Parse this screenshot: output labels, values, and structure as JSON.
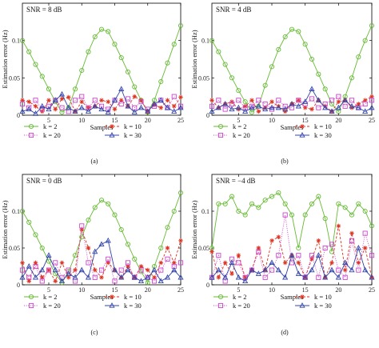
{
  "chart_data": [
    {
      "type": "line",
      "panel_label": "(a)",
      "annotation": "SNR = 8 dB",
      "xlabel": "Samples",
      "ylabel": "Estimation error (Hz)",
      "xlim": [
        1,
        25
      ],
      "ylim": [
        0,
        0.15
      ],
      "xticks": [
        "5",
        "10",
        "15",
        "20",
        "25"
      ],
      "yticks": [
        "0",
        "0.05",
        "0.1"
      ],
      "grid": false,
      "legend_position": "below",
      "x": [
        1,
        2,
        3,
        4,
        5,
        6,
        7,
        8,
        9,
        10,
        11,
        12,
        13,
        14,
        15,
        16,
        17,
        18,
        19,
        20,
        21,
        22,
        23,
        24,
        25
      ],
      "series": [
        {
          "name": "k = 2",
          "color": "#66bb33",
          "marker": "circle",
          "linestyle": "solid",
          "values": [
            0.1,
            0.085,
            0.068,
            0.052,
            0.035,
            0.018,
            0.004,
            0.01,
            0.035,
            0.06,
            0.085,
            0.105,
            0.115,
            0.112,
            0.095,
            0.077,
            0.058,
            0.038,
            0.02,
            0.004,
            0.02,
            0.045,
            0.07,
            0.095,
            0.12
          ]
        },
        {
          "name": "k = 10",
          "color": "#dd3322",
          "marker": "star",
          "linestyle": "dashed",
          "values": [
            0.02,
            0.018,
            0.012,
            0.005,
            0.02,
            0.008,
            0.022,
            0.024,
            0.005,
            0.018,
            0.01,
            0.012,
            0.02,
            0.018,
            0.008,
            0.02,
            0.012,
            0.025,
            0.02,
            0.005,
            0.014,
            0.01,
            0.02,
            0.012,
            0.024
          ]
        },
        {
          "name": "k = 20",
          "color": "#cc44cc",
          "marker": "square",
          "linestyle": "dotted",
          "values": [
            0.015,
            0.01,
            0.02,
            0.008,
            0.012,
            0.02,
            0.01,
            0.005,
            0.02,
            0.025,
            0.01,
            0.02,
            0.012,
            0.008,
            0.02,
            0.015,
            0.022,
            0.01,
            0.018,
            0.008,
            0.012,
            0.02,
            0.01,
            0.025,
            0.012
          ]
        },
        {
          "name": "k = 30",
          "color": "#3344aa",
          "marker": "triangle",
          "linestyle": "solid",
          "values": [
            0.005,
            0.008,
            0.002,
            0.012,
            0.008,
            0.02,
            0.028,
            0.01,
            0.005,
            0.01,
            0.005,
            0.012,
            0.008,
            0.004,
            0.02,
            0.035,
            0.012,
            0.004,
            0.01,
            0.005,
            0.015,
            0.02,
            0.01,
            0.005,
            0.01
          ]
        }
      ]
    },
    {
      "type": "line",
      "panel_label": "(b)",
      "annotation": "SNR = 4 dB",
      "xlabel": "Samples",
      "ylabel": "Estimation error (Hz)",
      "xlim": [
        1,
        25
      ],
      "ylim": [
        0,
        0.15
      ],
      "xticks": [
        "5",
        "10",
        "15",
        "20",
        "25"
      ],
      "yticks": [
        "0",
        "0.05",
        "0.1"
      ],
      "grid": false,
      "legend_position": "below",
      "x": [
        1,
        2,
        3,
        4,
        5,
        6,
        7,
        8,
        9,
        10,
        11,
        12,
        13,
        14,
        15,
        16,
        17,
        18,
        19,
        20,
        21,
        22,
        23,
        24,
        25
      ],
      "series": [
        {
          "name": "k = 2",
          "color": "#66bb33",
          "marker": "circle",
          "linestyle": "solid",
          "values": [
            0.1,
            0.085,
            0.068,
            0.05,
            0.033,
            0.018,
            0.004,
            0.012,
            0.04,
            0.065,
            0.088,
            0.105,
            0.115,
            0.112,
            0.095,
            0.075,
            0.055,
            0.035,
            0.015,
            0.005,
            0.025,
            0.05,
            0.078,
            0.1,
            0.12
          ]
        },
        {
          "name": "k = 10",
          "color": "#dd3322",
          "marker": "star",
          "linestyle": "dashed",
          "values": [
            0.02,
            0.01,
            0.015,
            0.018,
            0.008,
            0.012,
            0.02,
            0.005,
            0.01,
            0.018,
            0.012,
            0.005,
            0.015,
            0.02,
            0.01,
            0.008,
            0.02,
            0.012,
            0.005,
            0.018,
            0.02,
            0.01,
            0.015,
            0.02,
            0.025
          ]
        },
        {
          "name": "k = 20",
          "color": "#cc44cc",
          "marker": "square",
          "linestyle": "dotted",
          "values": [
            0.012,
            0.02,
            0.008,
            0.015,
            0.02,
            0.01,
            0.012,
            0.02,
            0.015,
            0.008,
            0.02,
            0.012,
            0.01,
            0.02,
            0.015,
            0.022,
            0.01,
            0.015,
            0.02,
            0.025,
            0.012,
            0.02,
            0.01,
            0.015,
            0.02
          ]
        },
        {
          "name": "k = 30",
          "color": "#3344aa",
          "marker": "triangle",
          "linestyle": "solid",
          "values": [
            0.005,
            0.01,
            0.015,
            0.008,
            0.01,
            0.005,
            0.01,
            0.012,
            0.008,
            0.01,
            0.01,
            0.008,
            0.015,
            0.012,
            0.018,
            0.035,
            0.02,
            0.01,
            0.005,
            0.01,
            0.02,
            0.012,
            0.01,
            0.005,
            0.01
          ]
        }
      ]
    },
    {
      "type": "line",
      "panel_label": "(c)",
      "annotation": "SNR = 0 dB",
      "xlabel": "Samples",
      "ylabel": "Estimation error (Hz)",
      "xlim": [
        1,
        25
      ],
      "ylim": [
        0,
        0.15
      ],
      "xticks": [
        "5",
        "10",
        "15",
        "20",
        "25"
      ],
      "yticks": [
        "0",
        "0.05",
        "0.1"
      ],
      "grid": false,
      "legend_position": "below",
      "x": [
        1,
        2,
        3,
        4,
        5,
        6,
        7,
        8,
        9,
        10,
        11,
        12,
        13,
        14,
        15,
        16,
        17,
        18,
        19,
        20,
        21,
        22,
        23,
        24,
        25
      ],
      "series": [
        {
          "name": "k = 2",
          "color": "#66bb33",
          "marker": "circle",
          "linestyle": "solid",
          "values": [
            0.1,
            0.085,
            0.068,
            0.05,
            0.032,
            0.015,
            0.003,
            0.018,
            0.04,
            0.065,
            0.088,
            0.105,
            0.115,
            0.11,
            0.095,
            0.075,
            0.055,
            0.035,
            0.018,
            0.003,
            0.025,
            0.05,
            0.078,
            0.1,
            0.125
          ]
        },
        {
          "name": "k = 10",
          "color": "#dd3322",
          "marker": "star",
          "linestyle": "dashed",
          "values": [
            0.03,
            0.005,
            0.03,
            0.01,
            0.02,
            0.005,
            0.03,
            0.01,
            0.02,
            0.075,
            0.05,
            0.02,
            0.01,
            0.03,
            0.02,
            0.01,
            0.025,
            0.01,
            0.025,
            0.02,
            0.01,
            0.03,
            0.05,
            0.03,
            0.06
          ]
        },
        {
          "name": "k = 20",
          "color": "#cc44cc",
          "marker": "square",
          "linestyle": "dotted",
          "values": [
            0.02,
            0.01,
            0.025,
            0.005,
            0.02,
            0.03,
            0.01,
            0.02,
            0.005,
            0.08,
            0.03,
            0.01,
            0.02,
            0.035,
            0.005,
            0.02,
            0.03,
            0.01,
            0.02,
            0.01,
            0.005,
            0.02,
            0.035,
            0.025,
            0.03
          ]
        },
        {
          "name": "k = 30",
          "color": "#3344aa",
          "marker": "triangle",
          "linestyle": "solid",
          "values": [
            0.01,
            0.025,
            0.01,
            0.02,
            0.04,
            0.02,
            0.005,
            0.015,
            0.01,
            0.02,
            0.01,
            0.045,
            0.055,
            0.06,
            0.02,
            0.01,
            0.02,
            0.01,
            0.005,
            0.01,
            0.02,
            0.005,
            0.01,
            0.02,
            0.01
          ]
        }
      ]
    },
    {
      "type": "line",
      "panel_label": "(d)",
      "annotation": "SNR = −4 dB",
      "xlabel": "Samples",
      "ylabel": "Estimation error (Hz)",
      "xlim": [
        1,
        25
      ],
      "ylim": [
        0,
        0.15
      ],
      "xticks": [
        "5",
        "10",
        "15",
        "20",
        "25"
      ],
      "yticks": [
        "0",
        "0.05",
        "0.1"
      ],
      "grid": false,
      "legend_position": "below",
      "x": [
        1,
        2,
        3,
        4,
        5,
        6,
        7,
        8,
        9,
        10,
        11,
        12,
        13,
        14,
        15,
        16,
        17,
        18,
        19,
        20,
        21,
        22,
        23,
        24,
        25
      ],
      "series": [
        {
          "name": "k = 2",
          "color": "#66bb33",
          "marker": "circle",
          "linestyle": "solid",
          "values": [
            0.05,
            0.11,
            0.11,
            0.12,
            0.1,
            0.095,
            0.11,
            0.105,
            0.115,
            0.12,
            0.125,
            0.11,
            0.095,
            0.05,
            0.095,
            0.11,
            0.12,
            0.09,
            0.045,
            0.11,
            0.105,
            0.095,
            0.11,
            0.1,
            0.08
          ]
        },
        {
          "name": "k = 10",
          "color": "#dd3322",
          "marker": "star",
          "linestyle": "dashed",
          "values": [
            0.045,
            0.01,
            0.03,
            0.015,
            0.04,
            0.01,
            0.02,
            0.05,
            0.02,
            0.06,
            0.065,
            0.03,
            0.04,
            0.03,
            0.01,
            0.035,
            0.06,
            0.01,
            0.03,
            0.08,
            0.02,
            0.07,
            0.03,
            0.05,
            0.01
          ]
        },
        {
          "name": "k = 20",
          "color": "#cc44cc",
          "marker": "square",
          "linestyle": "dotted",
          "values": [
            0.01,
            0.04,
            0.005,
            0.035,
            0.03,
            0.01,
            0.02,
            0.045,
            0.01,
            0.02,
            0.04,
            0.095,
            0.03,
            0.04,
            0.01,
            0.04,
            0.01,
            0.05,
            0.055,
            0.02,
            0.01,
            0.06,
            0.02,
            0.07,
            0.04
          ]
        },
        {
          "name": "k = 30",
          "color": "#3344aa",
          "marker": "triangle",
          "linestyle": "solid",
          "values": [
            0.01,
            0.02,
            0.01,
            0.03,
            0.01,
            0.005,
            0.02,
            0.015,
            0.02,
            0.03,
            0.02,
            0.01,
            0.04,
            0.015,
            0.01,
            0.02,
            0.04,
            0.01,
            0.02,
            0.01,
            0.03,
            0.02,
            0.05,
            0.02,
            0.01
          ]
        }
      ]
    }
  ]
}
